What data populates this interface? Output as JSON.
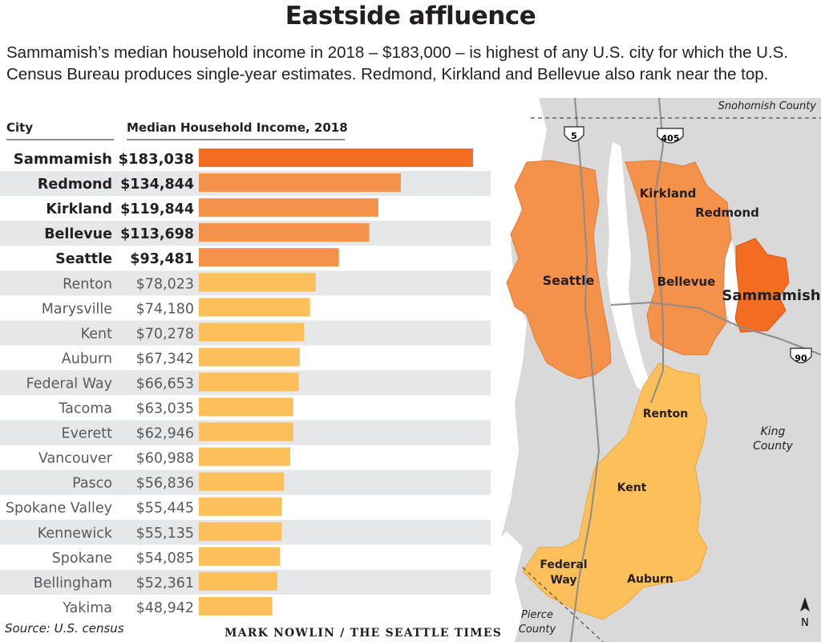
{
  "title": "Eastside affluence",
  "subtitle": "Sammamish’s median household income in 2018 – $183,000 – is highest of any U.S. city for which the U.S. Census Bureau produces single-year estimates. Redmond, Kirkland and Bellevue also rank near the top.",
  "headers": {
    "city": "City",
    "income": "Median Household Income, 2018"
  },
  "source": "Source: U.S. census",
  "credit": "MARK NOWLIN / THE SEATTLE TIMES",
  "colors": {
    "highlight": "#f26d21",
    "seattle_area": "#f4914b",
    "other": "#fdbf5a",
    "stripe": "#e6e7e8",
    "map_land": "#d9d9d9",
    "water": "#ffffff"
  },
  "chart_data": {
    "type": "bar",
    "orientation": "horizontal",
    "categories": [
      "Sammamish",
      "Redmond",
      "Kirkland",
      "Bellevue",
      "Seattle",
      "Renton",
      "Marysville",
      "Kent",
      "Auburn",
      "Federal Way",
      "Tacoma",
      "Everett",
      "Vancouver",
      "Pasco",
      "Spokane Valley",
      "Kennewick",
      "Spokane",
      "Bellingham",
      "Yakima"
    ],
    "values": [
      183038,
      134844,
      119844,
      113698,
      93481,
      78023,
      74180,
      70278,
      67342,
      66653,
      63035,
      62946,
      60988,
      56836,
      55445,
      55135,
      54085,
      52361,
      48942
    ],
    "labels": [
      "$183,038",
      "$134,844",
      "$119,844",
      "$113,698",
      "$93,481",
      "$78,023",
      "$74,180",
      "$70,278",
      "$67,342",
      "$66,653",
      "$63,035",
      "$62,946",
      "$60,988",
      "$56,836",
      "$55,445",
      "$55,135",
      "$54,085",
      "$52,361",
      "$48,942"
    ],
    "highlighted": [
      "Sammamish",
      "Redmond",
      "Kirkland",
      "Bellevue",
      "Seattle"
    ],
    "xlim": [
      0,
      183038
    ],
    "title": "",
    "xlabel": "Median Household Income, 2018",
    "ylabel": "City"
  },
  "map": {
    "labels": {
      "snohomish": "Snohomish County",
      "king": [
        "King",
        "County"
      ],
      "pierce": [
        "Pierce",
        "County"
      ],
      "north": "N",
      "i5": "5",
      "i405": "405",
      "i90": "90",
      "kirkland": "Kirkland",
      "redmond": "Redmond",
      "seattle": "Seattle",
      "bellevue": "Bellevue",
      "sammamish": "Sammamish",
      "renton": "Renton",
      "kent": "Kent",
      "federal_way": [
        "Federal",
        "Way"
      ],
      "auburn": "Auburn"
    }
  }
}
